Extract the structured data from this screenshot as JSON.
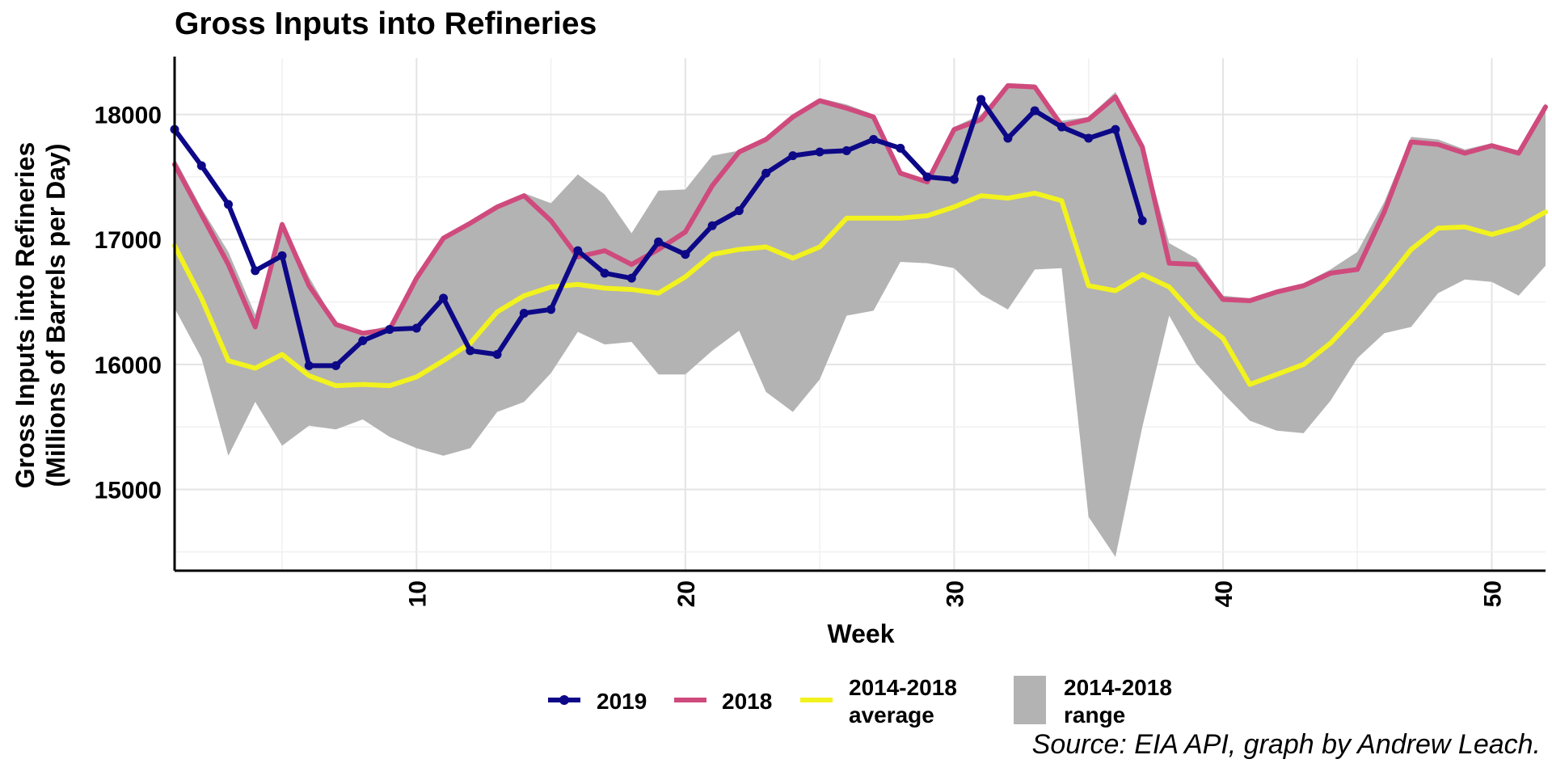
{
  "chart_data": {
    "type": "line",
    "title": "Gross Inputs into Refineries",
    "xlabel": "Week",
    "ylabel": [
      "Gross Inputs into Refineries",
      "(Millions of Barrels per Day)"
    ],
    "xlim": [
      1,
      52
    ],
    "ylim": [
      14350,
      18450
    ],
    "x_ticks": [
      10,
      20,
      30,
      40,
      50
    ],
    "y_ticks": [
      15000,
      16000,
      17000,
      18000
    ],
    "grid": true,
    "legend_position": "bottom",
    "range": {
      "name": "2014-2018 range",
      "color": "#b3b3b3",
      "x": [
        1,
        2,
        3,
        4,
        5,
        6,
        7,
        8,
        9,
        10,
        11,
        12,
        13,
        14,
        15,
        16,
        17,
        18,
        19,
        20,
        21,
        22,
        23,
        24,
        25,
        26,
        27,
        28,
        29,
        30,
        31,
        32,
        33,
        34,
        35,
        36,
        37,
        38,
        39,
        40,
        41,
        42,
        43,
        44,
        45,
        46,
        47,
        48,
        49,
        50,
        51,
        52
      ],
      "low": [
        16450,
        16050,
        15270,
        15700,
        15350,
        15510,
        15480,
        15560,
        15420,
        15330,
        15270,
        15330,
        15620,
        15700,
        15930,
        16260,
        16160,
        16180,
        15920,
        15920,
        16110,
        16270,
        15780,
        15620,
        15880,
        16390,
        16430,
        16820,
        16810,
        16770,
        16560,
        16440,
        16760,
        16770,
        14780,
        14460,
        15500,
        16390,
        16010,
        15770,
        15550,
        15470,
        15450,
        15710,
        16050,
        16250,
        16300,
        16570,
        16680,
        16660,
        16550,
        16790
      ],
      "high": [
        17650,
        17250,
        16900,
        16400,
        17130,
        16700,
        16330,
        16260,
        16310,
        16720,
        17030,
        17130,
        17270,
        17370,
        17290,
        17520,
        17360,
        17050,
        17390,
        17400,
        17670,
        17710,
        17800,
        18000,
        18130,
        18080,
        18000,
        17550,
        17470,
        17900,
        18000,
        18250,
        18240,
        17950,
        17980,
        18180,
        17760,
        16970,
        16850,
        16550,
        16530,
        16600,
        16650,
        16760,
        16900,
        17300,
        17820,
        17800,
        17720,
        17770,
        17710,
        18090
      ]
    },
    "series": [
      {
        "name": "2014-2018 average",
        "color": "#f2f21e",
        "markers": false,
        "values": [
          16950,
          16530,
          16030,
          15970,
          16080,
          15910,
          15830,
          15840,
          15830,
          15900,
          16030,
          16170,
          16420,
          16550,
          16620,
          16640,
          16610,
          16600,
          16570,
          16700,
          16880,
          16920,
          16940,
          16850,
          16940,
          17170,
          17170,
          17170,
          17190,
          17260,
          17350,
          17330,
          17370,
          17310,
          16630,
          16590,
          16720,
          16620,
          16380,
          16210,
          15840,
          15920,
          16000,
          16170,
          16400,
          16650,
          16920,
          17090,
          17100,
          17040,
          17100,
          17220
        ]
      },
      {
        "name": "2018",
        "color": "#cf4a7d",
        "markers": false,
        "values": [
          17600,
          17200,
          16800,
          16300,
          17120,
          16630,
          16320,
          16250,
          16280,
          16690,
          17010,
          17130,
          17260,
          17350,
          17150,
          16860,
          16910,
          16800,
          16920,
          17060,
          17430,
          17700,
          17800,
          17980,
          18110,
          18050,
          17980,
          17530,
          17460,
          17880,
          17960,
          18230,
          18220,
          17910,
          17960,
          18140,
          17740,
          16810,
          16800,
          16520,
          16510,
          16580,
          16630,
          16730,
          16760,
          17220,
          17780,
          17760,
          17690,
          17750,
          17690,
          18060
        ]
      },
      {
        "name": "2019",
        "color": "#0d0887",
        "markers": true,
        "values": [
          17880,
          17590,
          17280,
          16750,
          16870,
          15990,
          15990,
          16190,
          16280,
          16290,
          16530,
          16110,
          16080,
          16410,
          16440,
          16910,
          16730,
          16690,
          16980,
          16880,
          17110,
          17230,
          17530,
          17670,
          17700,
          17710,
          17800,
          17730,
          17500,
          17480,
          18120,
          17810,
          18030,
          17900,
          17810,
          17880,
          17150
        ]
      }
    ]
  },
  "legend": {
    "items": [
      "2019",
      "2018",
      "2014-2018",
      "average",
      "2014-2018",
      "range"
    ]
  },
  "caption": "Source: EIA API, graph by Andrew Leach."
}
